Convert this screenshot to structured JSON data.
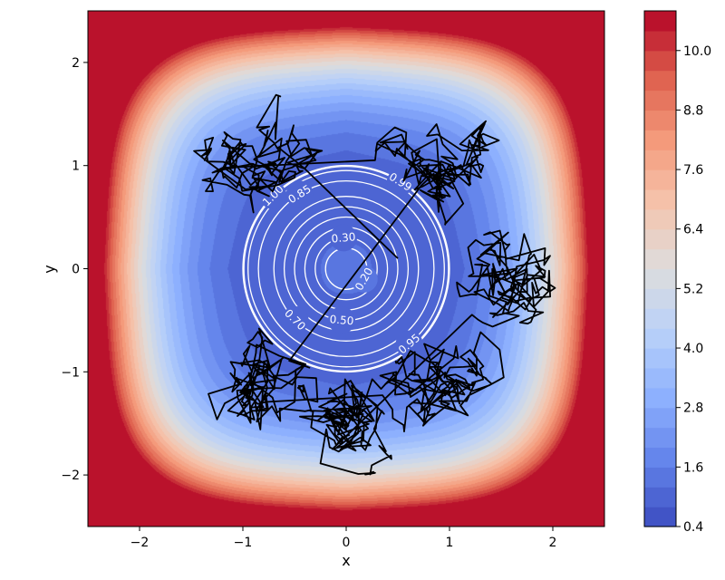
{
  "chart_data": {
    "type": "contourf",
    "title": "",
    "xlabel": "x",
    "ylabel": "y",
    "xlim": [
      -2.5,
      2.5
    ],
    "ylim": [
      -2.5,
      2.5
    ],
    "x_ticks": [
      -2,
      -1,
      0,
      1,
      2
    ],
    "y_ticks": [
      -2,
      -1,
      0,
      1,
      2
    ],
    "x_tick_labels": [
      "−2",
      "−1",
      "0",
      "1",
      "2"
    ],
    "y_tick_labels": [
      "−2",
      "−1",
      "0",
      "1",
      "2"
    ],
    "colormap": "coolwarm",
    "colorbar": {
      "min": 0.4,
      "max": 10.8,
      "ticks": [
        0.4,
        1.6,
        2.8,
        4.0,
        5.2,
        6.4,
        7.6,
        8.8,
        10.0
      ],
      "tick_labels": [
        "0.4",
        "1.6",
        "2.8",
        "4.0",
        "5.2",
        "6.4",
        "7.6",
        "8.8",
        "10.0"
      ],
      "placement": "right"
    },
    "circle_contours": [
      {
        "radius": 0.2,
        "label": "0.20"
      },
      {
        "radius": 0.3,
        "label": "0.30"
      },
      {
        "radius": 0.4,
        "label": ""
      },
      {
        "radius": 0.5,
        "label": "0.50"
      },
      {
        "radius": 0.6,
        "label": ""
      },
      {
        "radius": 0.7,
        "label": "0.70"
      },
      {
        "radius": 0.85,
        "label": "0.85"
      },
      {
        "radius": 0.95,
        "label": "0.95"
      },
      {
        "radius": 0.99,
        "label": "0.99"
      },
      {
        "radius": 1.0,
        "label": "1.00"
      }
    ],
    "trajectory_color": "#000000",
    "trajectory_seed_clusters": [
      {
        "center": [
          -0.9,
          1.0
        ],
        "spread": 0.45
      },
      {
        "center": [
          1.0,
          1.05
        ],
        "spread": 0.45
      },
      {
        "center": [
          -0.8,
          -1.2
        ],
        "spread": 0.4
      },
      {
        "center": [
          1.05,
          -1.05
        ],
        "spread": 0.45
      },
      {
        "center": [
          0.1,
          -1.45
        ],
        "spread": 0.35
      },
      {
        "center": [
          1.55,
          -0.1
        ],
        "spread": 0.3
      }
    ]
  }
}
